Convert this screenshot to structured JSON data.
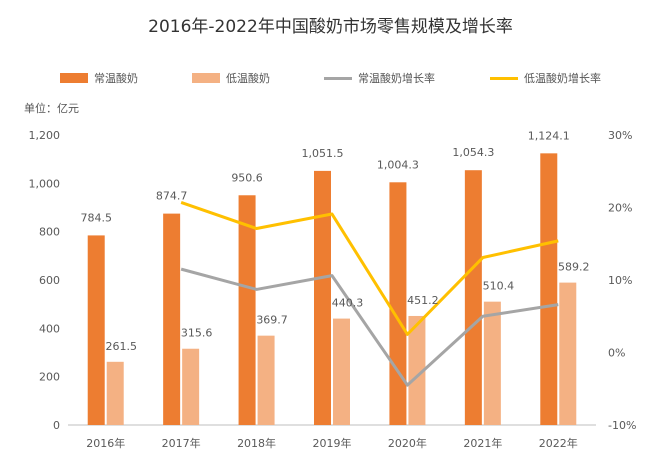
{
  "title": "2016年-2022年中国酸奶市场零售规模及增长率",
  "unit_label": "单位：亿元",
  "chart_data": {
    "type": "bar",
    "title": "2016年-2022年中国酸奶市场零售规模及增长率",
    "categories": [
      "2016年",
      "2017年",
      "2018年",
      "2019年",
      "2020年",
      "2021年",
      "2022年"
    ],
    "series": [
      {
        "name": "常温酸奶",
        "type": "bar",
        "axis": "left",
        "values": [
          784.5,
          874.7,
          950.6,
          1051.5,
          1004.3,
          1054.3,
          1124.1
        ],
        "labels": [
          "784.5",
          "874.7",
          "950.6",
          "1,051.5",
          "1,004.3",
          "1,054.3",
          "1,124.1"
        ]
      },
      {
        "name": "低温酸奶",
        "type": "bar",
        "axis": "left",
        "values": [
          261.5,
          315.6,
          369.7,
          440.3,
          451.2,
          510.4,
          589.2
        ],
        "labels": [
          "261.5",
          "315.6",
          "369.7",
          "440.3",
          "451.2",
          "510.4",
          "589.2"
        ]
      },
      {
        "name": "常温酸奶增长率",
        "type": "line",
        "axis": "right",
        "values": [
          null,
          11.5,
          8.7,
          10.6,
          -4.5,
          5.0,
          6.6
        ]
      },
      {
        "name": "低温酸奶增长率",
        "type": "line",
        "axis": "right",
        "values": [
          null,
          20.7,
          17.1,
          19.1,
          2.5,
          13.1,
          15.4
        ]
      }
    ],
    "y_left": {
      "min": 0,
      "max": 1200,
      "ticks": [
        0,
        200,
        400,
        600,
        800,
        1000,
        1200
      ],
      "tick_labels": [
        "0",
        "200",
        "400",
        "600",
        "800",
        "1,000",
        "1,200"
      ]
    },
    "y_right": {
      "min": -10,
      "max": 30,
      "ticks": [
        -10,
        0,
        10,
        20,
        30
      ],
      "tick_labels": [
        "-10%",
        "0%",
        "10%",
        "20%",
        "30%"
      ]
    },
    "ylabel": "单位：亿元",
    "grid": false,
    "legend_position": "top",
    "colors": {
      "常温酸奶": "#ED7D31",
      "低温酸奶": "#F4B183",
      "常温酸奶增长率": "#A5A5A5",
      "低温酸奶增长率": "#FFC000"
    }
  }
}
